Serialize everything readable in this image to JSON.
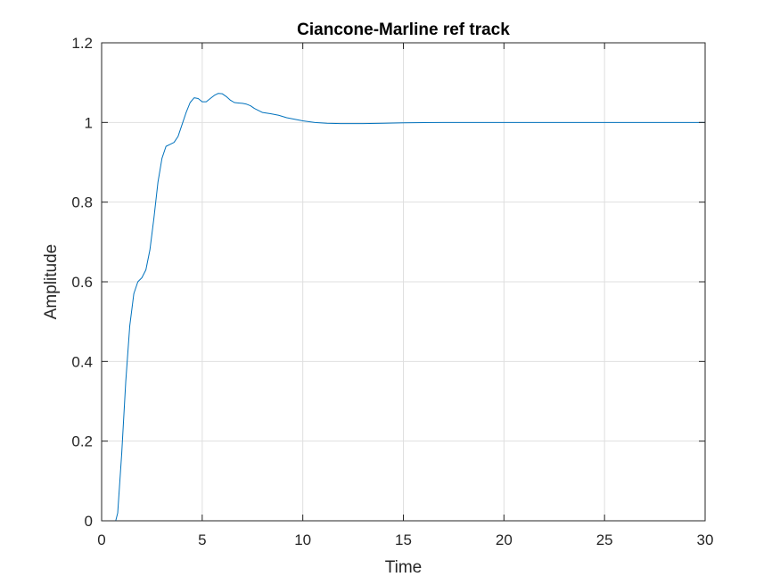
{
  "chart_data": {
    "type": "line",
    "title": "Ciancone-Marline ref track",
    "xlabel": "Time",
    "ylabel": "Amplitude",
    "xlim": [
      0,
      30
    ],
    "ylim": [
      0,
      1.2
    ],
    "xticks": [
      0,
      5,
      10,
      15,
      20,
      25,
      30
    ],
    "yticks": [
      0,
      0.2,
      0.4,
      0.6,
      0.8,
      1,
      1.2
    ],
    "xtick_labels": [
      "0",
      "5",
      "10",
      "15",
      "20",
      "25",
      "30"
    ],
    "ytick_labels": [
      "0",
      "0.2",
      "0.4",
      "0.6",
      "0.8",
      "1",
      "1.2"
    ],
    "grid": true,
    "line_color": "#0072BD",
    "series": [
      {
        "x": [
          0,
          0.7,
          0.8,
          1.0,
          1.2,
          1.4,
          1.6,
          1.8,
          2.0,
          2.2,
          2.4,
          2.6,
          2.8,
          3.0,
          3.2,
          3.4,
          3.6,
          3.8,
          4.0,
          4.2,
          4.4,
          4.6,
          4.8,
          5.0,
          5.2,
          5.4,
          5.6,
          5.8,
          6.0,
          6.2,
          6.4,
          6.6,
          6.8,
          7.0,
          7.2,
          7.4,
          7.6,
          7.8,
          8.0,
          8.4,
          8.8,
          9.2,
          9.6,
          10.0,
          10.6,
          11.2,
          12.0,
          13.0,
          14.0,
          15.0,
          16.0,
          17.0,
          18.0,
          20.0,
          22.0,
          25.0,
          28.0,
          30.0
        ],
        "y": [
          0,
          0.0,
          0.02,
          0.17,
          0.35,
          0.49,
          0.57,
          0.6,
          0.61,
          0.63,
          0.68,
          0.76,
          0.85,
          0.91,
          0.94,
          0.945,
          0.95,
          0.965,
          0.995,
          1.025,
          1.05,
          1.062,
          1.06,
          1.052,
          1.052,
          1.06,
          1.068,
          1.073,
          1.072,
          1.065,
          1.056,
          1.05,
          1.049,
          1.048,
          1.046,
          1.042,
          1.035,
          1.03,
          1.025,
          1.022,
          1.018,
          1.012,
          1.008,
          1.004,
          1.0,
          0.998,
          0.997,
          0.997,
          0.998,
          0.999,
          0.9995,
          1.0,
          1.0,
          1.0,
          1.0,
          1.0,
          1.0,
          1.0
        ]
      }
    ]
  }
}
